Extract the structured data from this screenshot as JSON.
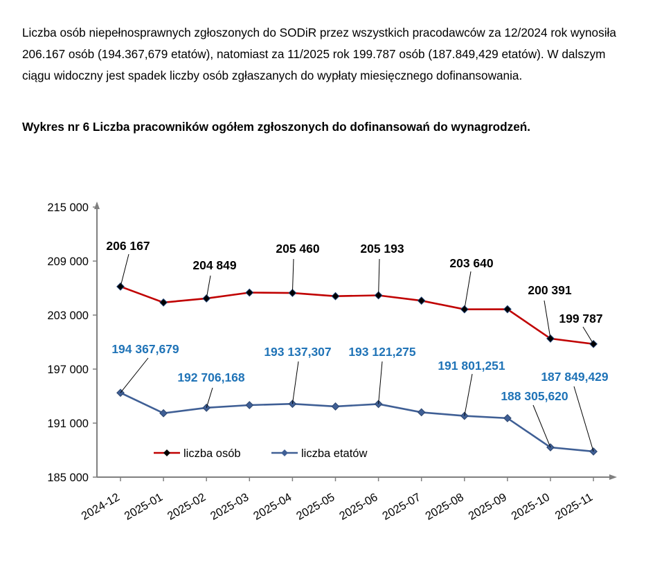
{
  "text": {
    "intro": "Liczba osób niepełnosprawnych zgłoszonych do SODiR przez wszystkich pracodawców za 12/2024 rok wynosiła 206.167 osób (194.367,679 etatów), natomiast za 11/2025 rok 199.787 osób (187.849,429 etatów). W dalszym ciągu widoczny jest spadek liczby osób zgłaszanych do wypłaty miesięcznego dofinansowania.",
    "figure_title": "Wykres nr 6 Liczba pracowników ogółem zgłoszonych do dofinansowań do wynagrodzeń."
  },
  "chart_data": {
    "type": "line",
    "categories": [
      "2024-12",
      "2025-01",
      "2025-02",
      "2025-03",
      "2025-04",
      "2025-05",
      "2025-06",
      "2025-07",
      "2025-08",
      "2025-09",
      "2025-10",
      "2025-11"
    ],
    "ylim": [
      185000,
      215000
    ],
    "yticks": [
      185000,
      191000,
      197000,
      203000,
      209000,
      215000
    ],
    "ytick_labels": [
      "185 000",
      "191 000",
      "197 000",
      "203 000",
      "209 000",
      "215 000"
    ],
    "grid": false,
    "legend_position": "bottom-left",
    "series": [
      {
        "name": "liczba osób",
        "color": "#c00000",
        "marker": "diamond",
        "values": [
          206167,
          204400,
          204849,
          205500,
          205460,
          205100,
          205193,
          204600,
          203640,
          203650,
          200391,
          199787
        ],
        "data_labels": [
          {
            "index": 0,
            "text": "206 167"
          },
          {
            "index": 2,
            "text": "204 849"
          },
          {
            "index": 4,
            "text": "205 460"
          },
          {
            "index": 6,
            "text": "205 193"
          },
          {
            "index": 8,
            "text": "203 640"
          },
          {
            "index": 10,
            "text": "200 391"
          },
          {
            "index": 11,
            "text": "199 787"
          }
        ]
      },
      {
        "name": "liczba etatów",
        "color": "#3f5f95",
        "marker": "diamond",
        "values": [
          194367.679,
          192100,
          192706.168,
          193000,
          193137.307,
          192850,
          193121.275,
          192200,
          191801.251,
          191550,
          188305.62,
          187849.429
        ],
        "data_labels": [
          {
            "index": 0,
            "text": "194 367,679"
          },
          {
            "index": 2,
            "text": "192 706,168"
          },
          {
            "index": 4,
            "text": "193 137,307"
          },
          {
            "index": 6,
            "text": "193 121,275"
          },
          {
            "index": 8,
            "text": "191 801,251"
          },
          {
            "index": 10,
            "text": "188 305,620"
          },
          {
            "index": 11,
            "text": "187 849,429"
          }
        ]
      }
    ],
    "label_colors": {
      "liczba osób": "#000000",
      "liczba etatów": "#1f73b7"
    }
  }
}
